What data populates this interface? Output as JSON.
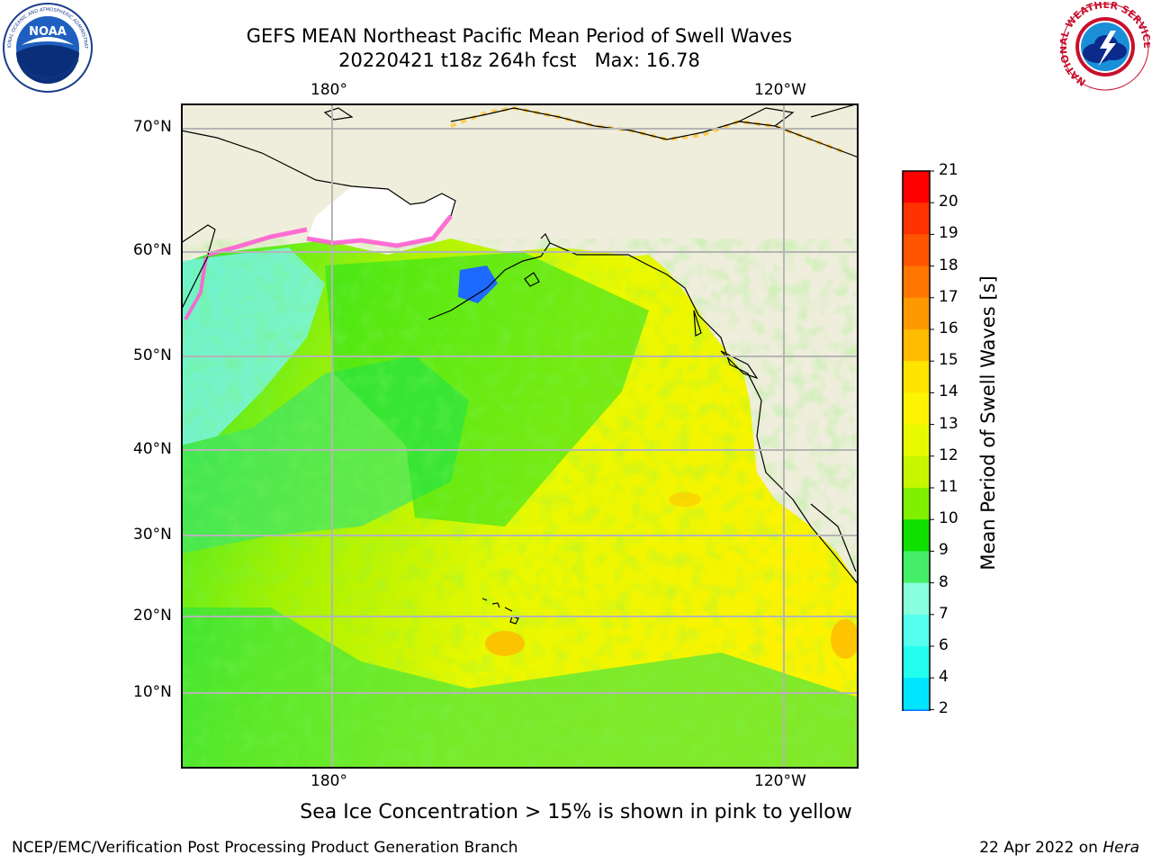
{
  "title": {
    "line1": "GEFS MEAN Northeast Pacific Mean Period of Swell Waves",
    "line2": "20220421 t18z 264h fcst   Max: 16.78"
  },
  "map": {
    "top_lon_labels": [
      "180°",
      "120°W"
    ],
    "bottom_lon_labels": [
      "180°",
      "120°W"
    ],
    "lat_labels": [
      "70°N",
      "60°N",
      "50°N",
      "40°N",
      "30°N",
      "20°N",
      "10°N"
    ],
    "colors": {
      "land": "#efeedc",
      "ice": "#ffffff",
      "grid": "#b5b5b5",
      "coast": "#000000"
    }
  },
  "colorbar": {
    "title": "Mean Period of Swell Waves [s]",
    "labels": [
      "21",
      "20",
      "19",
      "18",
      "17",
      "16",
      "15",
      "14",
      "13",
      "12",
      "11",
      "10",
      "9",
      "8",
      "7",
      "6",
      "4",
      "2"
    ],
    "colors": [
      "#ff0000",
      "#ff3300",
      "#ff5500",
      "#ff7700",
      "#ff9900",
      "#ffbb00",
      "#ffe400",
      "#fcf400",
      "#e8fa00",
      "#c6f700",
      "#80f000",
      "#10e000",
      "#44ee66",
      "#88ffdd",
      "#55ffee",
      "#22ffee",
      "#00e5ff",
      "#0077ff"
    ],
    "under_color": "#0000ee"
  },
  "note": "Sea Ice Concentration > 15% is shown in pink to yellow",
  "footer": {
    "left": "NCEP/EMC/Verification Post Processing Product Generation Branch",
    "date": "22 Apr 2022 on ",
    "machine": "Hera"
  },
  "logos": {
    "noaa_text": "NOAA",
    "noaa_ring_top": "NATIONAL OCEANIC AND ATMOSPHERIC ADMINISTRATION",
    "noaa_ring_bottom": "U.S. DEPARTMENT OF COMMERCE",
    "nws_ring": "NATIONAL WEATHER SERVICE"
  }
}
